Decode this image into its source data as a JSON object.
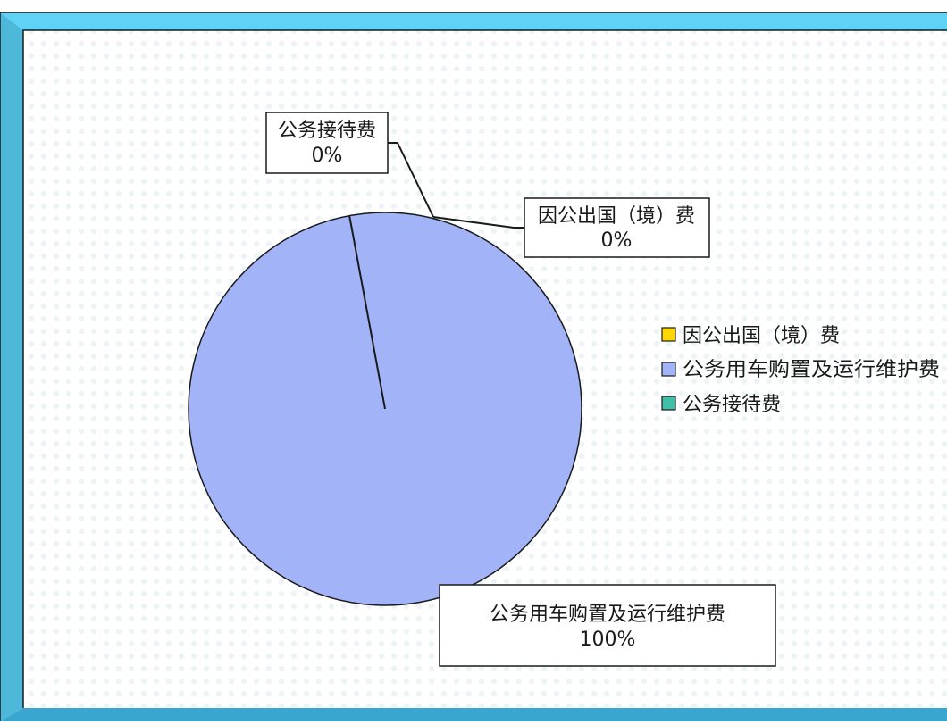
{
  "chart_data": {
    "type": "pie",
    "categories": [
      "因公出国（境）费",
      "公务用车购置及运行维护费",
      "公务接待费"
    ],
    "values": [
      0,
      100,
      0
    ],
    "colors": [
      "#ffd700",
      "#a2b3f7",
      "#3fbfa8"
    ],
    "data_labels": [
      {
        "category": "公务接待费",
        "percent": "0%"
      },
      {
        "category": "因公出国（境）费",
        "percent": "0%"
      },
      {
        "category": "公务用车购置及运行维护费",
        "percent": "100%"
      }
    ],
    "legend": {
      "position": "right",
      "entries": [
        "因公出国（境）费",
        "公务用车购置及运行维护费",
        "公务接待费"
      ]
    }
  },
  "frame_colors": {
    "top": "#5fd3f5",
    "side": "#4db8d9",
    "bottom": "#39a6cf"
  }
}
